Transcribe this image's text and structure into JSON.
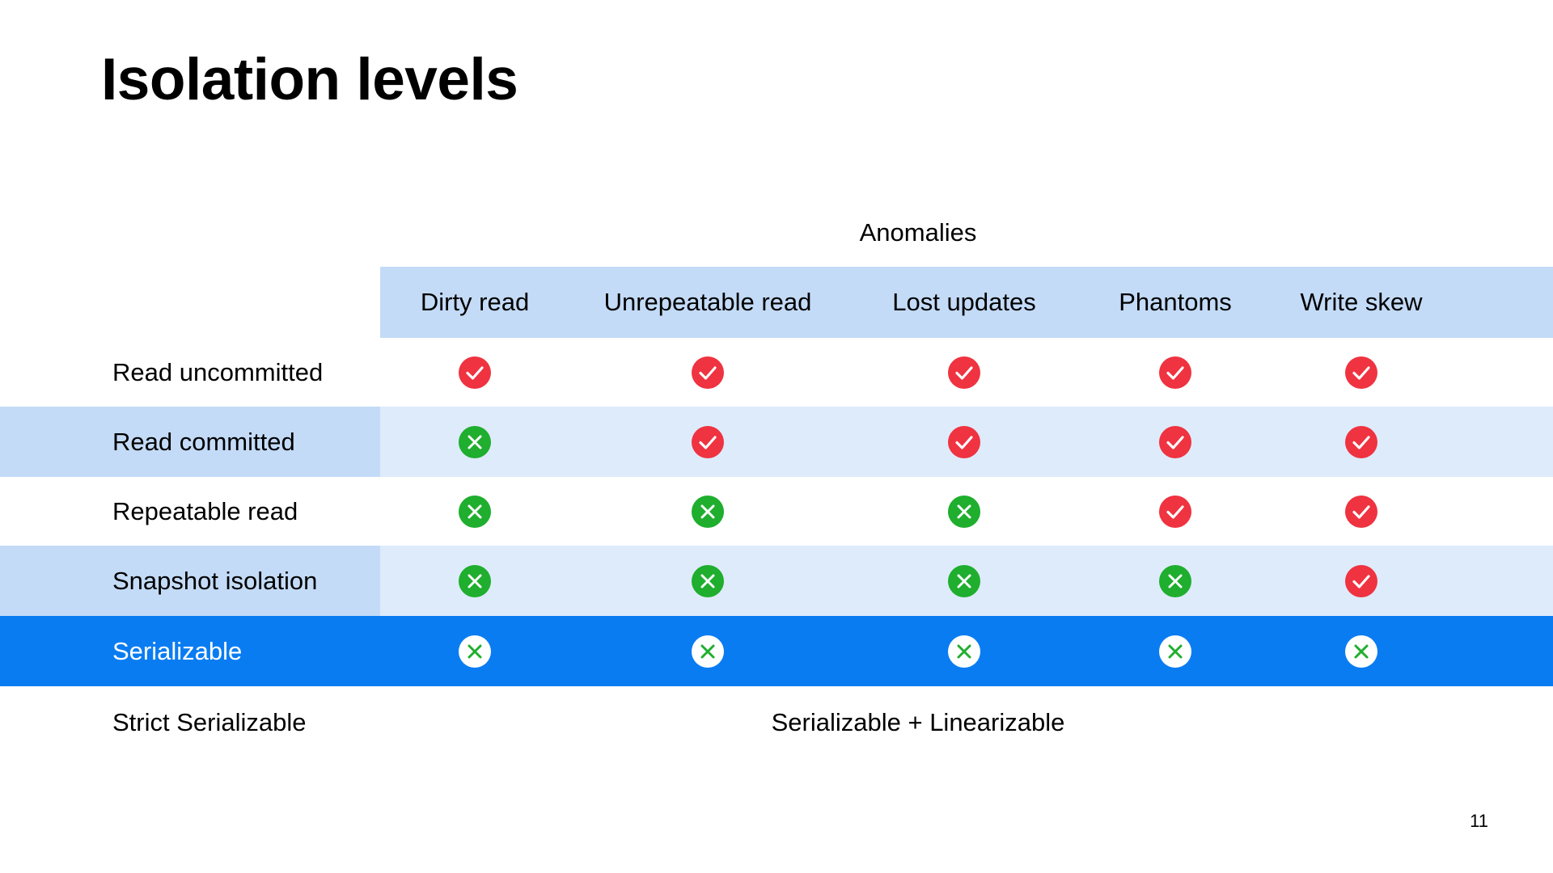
{
  "slide": {
    "title": "Isolation levels",
    "group_label": "Anomalies",
    "page_number": "11"
  },
  "columns": [
    "Dirty read",
    "Unrepeatable read",
    "Lost updates",
    "Phantoms",
    "Write skew"
  ],
  "rows": [
    {
      "label": "Read uncommitted",
      "values": [
        "check",
        "check",
        "check",
        "check",
        "check"
      ],
      "style": "plain"
    },
    {
      "label": "Read committed",
      "values": [
        "x",
        "check",
        "check",
        "check",
        "check"
      ],
      "style": "light"
    },
    {
      "label": "Repeatable read",
      "values": [
        "x",
        "x",
        "x",
        "check",
        "check"
      ],
      "style": "plain"
    },
    {
      "label": "Snapshot isolation",
      "values": [
        "x",
        "x",
        "x",
        "x",
        "check"
      ],
      "style": "light"
    },
    {
      "label": "Serializable",
      "values": [
        "x",
        "x",
        "x",
        "x",
        "x"
      ],
      "style": "highlight"
    }
  ],
  "footer_row": {
    "label": "Strict Serializable",
    "note": "Serializable + Linearizable"
  },
  "colors": {
    "header_band": "#c3dbf7",
    "light_label_band": "#c3dbf7",
    "light_value_band": "#deebfb",
    "highlight_band": "#0a7cf2",
    "check_red": "#ef3340",
    "x_green": "#1fae2e",
    "x_green_on_highlight": "#ffffff"
  },
  "icons": {
    "check": "check-circle-icon",
    "x": "x-circle-icon"
  }
}
